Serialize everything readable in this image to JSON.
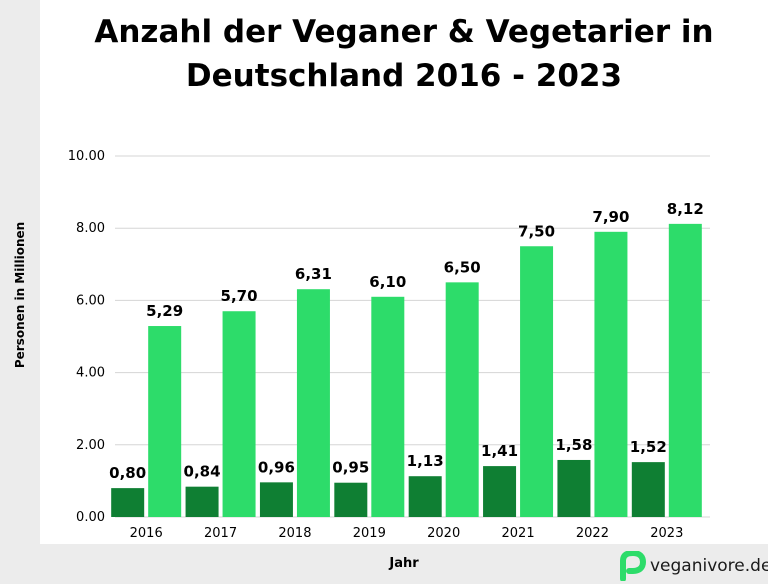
{
  "title": "Anzahl der Veganer & Vegetarier in Deutschland 2016 - 2023",
  "brand": "veganivore.de",
  "colors": {
    "vegan": "#0f7f33",
    "vegetarian": "#2ddc6a",
    "grid": "#d5d5d5",
    "logo": "#2ddc6a"
  },
  "chart_data": {
    "type": "bar",
    "categories": [
      "2016",
      "2017",
      "2018",
      "2019",
      "2020",
      "2021",
      "2022",
      "2023"
    ],
    "series": [
      {
        "values": [
          0.8,
          0.84,
          0.96,
          0.95,
          1.13,
          1.41,
          1.58,
          1.52
        ],
        "labels": [
          "0,80",
          "0,84",
          "0,96",
          "0,95",
          "1,13",
          "1,41",
          "1,58",
          "1,52"
        ]
      },
      {
        "values": [
          5.29,
          5.7,
          6.31,
          6.1,
          6.5,
          7.5,
          7.9,
          8.12
        ],
        "labels": [
          "5,29",
          "5,70",
          "6,31",
          "6,10",
          "6,50",
          "7,50",
          "7,90",
          "8,12"
        ]
      }
    ],
    "xlabel": "Jahr",
    "ylabel": "Personen in Millionen",
    "ylim": [
      0,
      10
    ],
    "yticks": [
      "0.00",
      "2.00",
      "4.00",
      "6.00",
      "8.00",
      "10.00"
    ],
    "grid": true
  }
}
